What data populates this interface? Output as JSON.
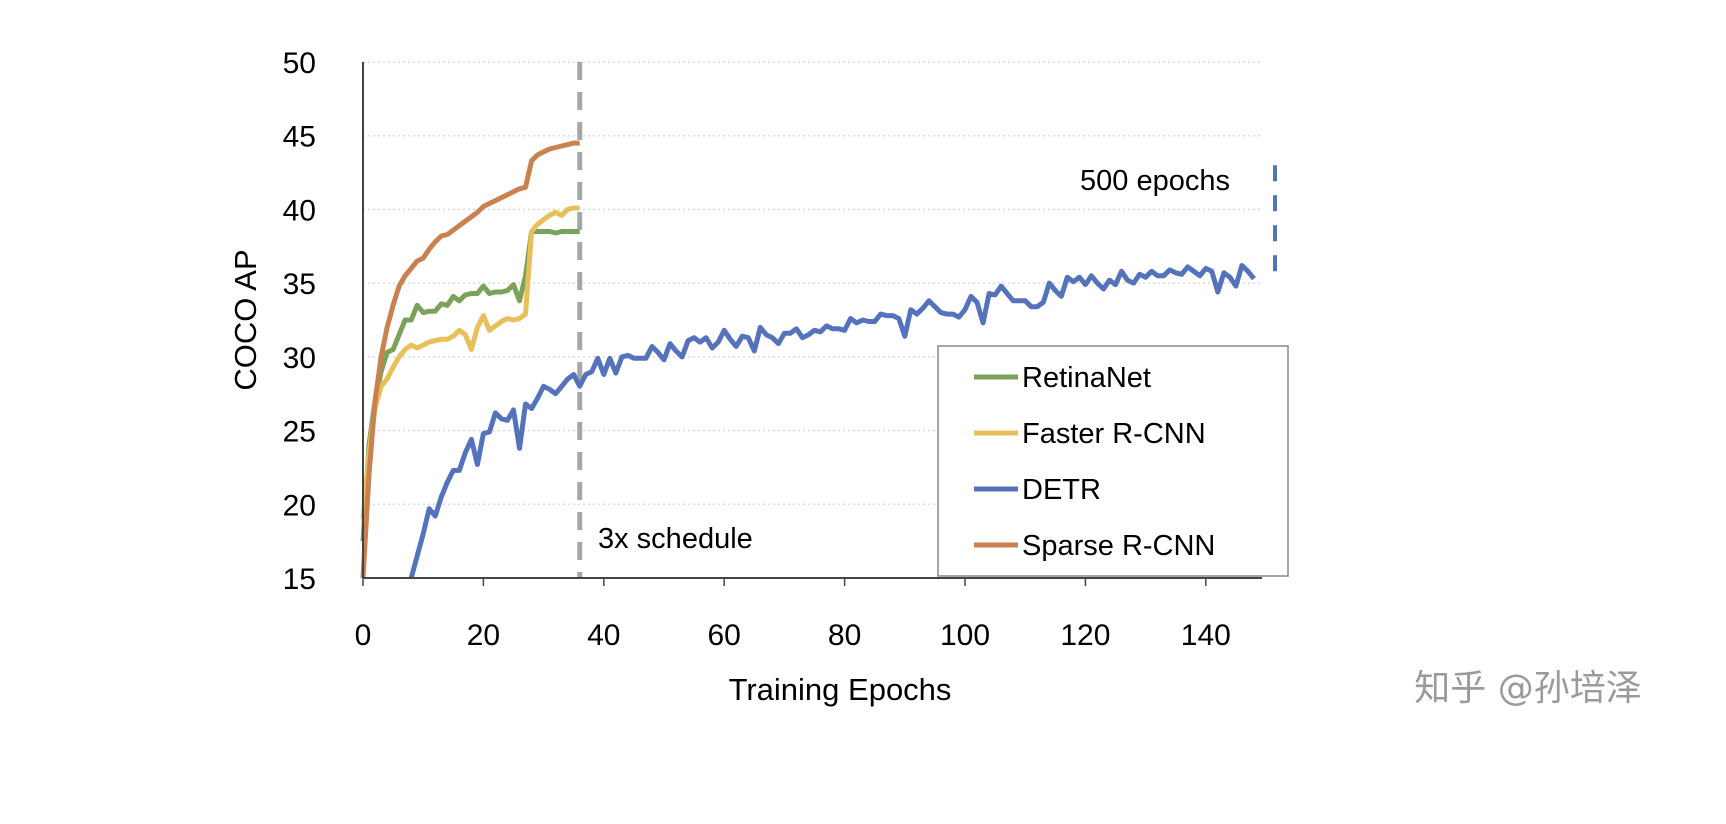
{
  "chart_data": {
    "type": "line",
    "title": "",
    "xlabel": "Training Epochs",
    "ylabel": "COCO AP",
    "xlim": [
      0,
      150
    ],
    "ylim": [
      15,
      50
    ],
    "xticks": [
      0,
      20,
      40,
      60,
      80,
      100,
      120,
      140
    ],
    "yticks": [
      15,
      20,
      25,
      30,
      35,
      40,
      45,
      50
    ],
    "grid": "horizontal dotted",
    "legend_position": "bottom-right",
    "series": [
      {
        "name": "RetinaNet",
        "color": "#7aa25a",
        "x": [
          0,
          1,
          2,
          3,
          4,
          5,
          6,
          7,
          8,
          9,
          10,
          11,
          12,
          13,
          14,
          15,
          16,
          17,
          18,
          19,
          20,
          21,
          22,
          23,
          24,
          25,
          26,
          27,
          28,
          29,
          30,
          31,
          32,
          33,
          34,
          35,
          36
        ],
        "y": [
          17.5,
          24,
          27,
          29,
          30.3,
          30.5,
          31.5,
          32.5,
          32.5,
          33.5,
          33,
          33.1,
          33.1,
          33.6,
          33.5,
          34.1,
          33.8,
          34.2,
          34.3,
          34.3,
          34.8,
          34.3,
          34.4,
          34.4,
          34.5,
          34.9,
          33.8,
          35.5,
          38.5,
          38.5,
          38.5,
          38.5,
          38.4,
          38.5,
          38.5,
          38.5,
          38.5
        ]
      },
      {
        "name": "Faster R-CNN",
        "color": "#e8c05a",
        "x": [
          0,
          1,
          2,
          3,
          4,
          5,
          6,
          7,
          8,
          9,
          10,
          11,
          12,
          13,
          14,
          15,
          16,
          17,
          18,
          19,
          20,
          21,
          22,
          23,
          24,
          25,
          26,
          27,
          28,
          29,
          30,
          31,
          32,
          33,
          34,
          35,
          36
        ],
        "y": [
          19,
          23.5,
          26.5,
          28,
          28.5,
          29.3,
          30,
          30.5,
          30.8,
          30.6,
          30.8,
          31,
          31.1,
          31.2,
          31.2,
          31.4,
          31.8,
          31.5,
          30.5,
          32,
          32.8,
          31.8,
          32.1,
          32.4,
          32.6,
          32.5,
          32.6,
          32.9,
          38.5,
          39,
          39.3,
          39.6,
          39.8,
          39.6,
          40,
          40.1,
          40.1
        ]
      },
      {
        "name": "DETR",
        "color": "#5473bb",
        "x": [
          8,
          9,
          10,
          11,
          12,
          13,
          14,
          15,
          16,
          17,
          18,
          19,
          20,
          21,
          22,
          23,
          24,
          25,
          26,
          27,
          28,
          29,
          30,
          31,
          32,
          33,
          34,
          35,
          36,
          37,
          38,
          39,
          40,
          41,
          42,
          43,
          44,
          45,
          46,
          47,
          48,
          49,
          50,
          51,
          52,
          53,
          54,
          55,
          56,
          57,
          58,
          59,
          60,
          61,
          62,
          63,
          64,
          65,
          66,
          67,
          68,
          69,
          70,
          71,
          72,
          73,
          74,
          75,
          76,
          77,
          78,
          79,
          80,
          81,
          82,
          83,
          84,
          85,
          86,
          87,
          88,
          89,
          90,
          91,
          92,
          93,
          94,
          95,
          96,
          97,
          98,
          99,
          100,
          101,
          102,
          103,
          104,
          105,
          106,
          107,
          108,
          109,
          110,
          111,
          112,
          113,
          114,
          115,
          116,
          117,
          118,
          119,
          120,
          121,
          122,
          123,
          124,
          125,
          126,
          127,
          128,
          129,
          130,
          131,
          132,
          133,
          134,
          135,
          136,
          137,
          138,
          139,
          140,
          141,
          142,
          143,
          144,
          145,
          146,
          147,
          148
        ],
        "y": [
          15,
          16.5,
          18,
          19.7,
          19.2,
          20.5,
          21.5,
          22.3,
          22.3,
          23.5,
          24.4,
          22.7,
          24.8,
          24.9,
          26.2,
          25.8,
          25.7,
          26.4,
          23.8,
          26.8,
          26.5,
          27.2,
          28,
          27.8,
          27.5,
          28,
          28.5,
          28.8,
          28.0,
          28.8,
          29.0,
          29.9,
          28.8,
          29.9,
          28.9,
          30.0,
          30.1,
          29.9,
          29.9,
          29.9,
          30.7,
          30.3,
          29.8,
          30.9,
          30.4,
          30.0,
          31.1,
          31.3,
          31.0,
          31.3,
          30.6,
          31.0,
          31.8,
          31.2,
          30.7,
          31.4,
          31.3,
          30.4,
          32.0,
          31.5,
          31.3,
          30.9,
          31.6,
          31.6,
          31.9,
          31.3,
          31.5,
          31.8,
          31.7,
          32.1,
          31.9,
          31.9,
          31.8,
          32.6,
          32.3,
          32.5,
          32.4,
          32.4,
          32.9,
          32.8,
          32.8,
          32.6,
          31.4,
          33.2,
          32.9,
          33.3,
          33.8,
          33.4,
          33.0,
          32.9,
          32.9,
          32.7,
          33.2,
          34.1,
          33.7,
          32.3,
          34.3,
          34.2,
          34.8,
          34.3,
          33.8,
          33.8,
          33.8,
          33.4,
          33.4,
          33.7,
          35.0,
          34.5,
          34.1,
          35.4,
          35.1,
          35.4,
          34.9,
          35.5,
          35.0,
          34.6,
          35.2,
          34.9,
          35.8,
          35.2,
          35.0,
          35.6,
          35.4,
          35.8,
          35.5,
          35.5,
          35.9,
          35.7,
          35.6,
          36.1,
          35.8,
          35.5,
          36.0,
          35.8,
          34.4,
          35.7,
          35.4,
          34.8,
          36.2,
          35.8,
          35.3
        ]
      },
      {
        "name": "Sparse R-CNN",
        "color": "#c9824f",
        "x": [
          0,
          1,
          2,
          3,
          4,
          5,
          6,
          7,
          8,
          9,
          10,
          11,
          12,
          13,
          14,
          15,
          16,
          17,
          18,
          19,
          20,
          21,
          22,
          23,
          24,
          25,
          26,
          27,
          28,
          29,
          30,
          31,
          32,
          33,
          34,
          35,
          36
        ],
        "y": [
          15,
          22,
          27,
          30,
          32,
          33.5,
          34.8,
          35.5,
          36,
          36.5,
          36.7,
          37.3,
          37.8,
          38.2,
          38.3,
          38.6,
          38.9,
          39.2,
          39.5,
          39.8,
          40.2,
          40.4,
          40.6,
          40.8,
          41,
          41.2,
          41.4,
          41.5,
          43.3,
          43.7,
          43.9,
          44.1,
          44.2,
          44.3,
          44.4,
          44.5,
          44.5
        ]
      }
    ],
    "annotations": {
      "schedule_line": {
        "x": 36,
        "label": "3x schedule",
        "color": "#a6a6a6"
      },
      "epochs_marker": {
        "label": "500 epochs",
        "y_range": [
          35.6,
          43
        ],
        "color": "#5473bb"
      }
    }
  },
  "watermark": "知乎 @孙培泽"
}
